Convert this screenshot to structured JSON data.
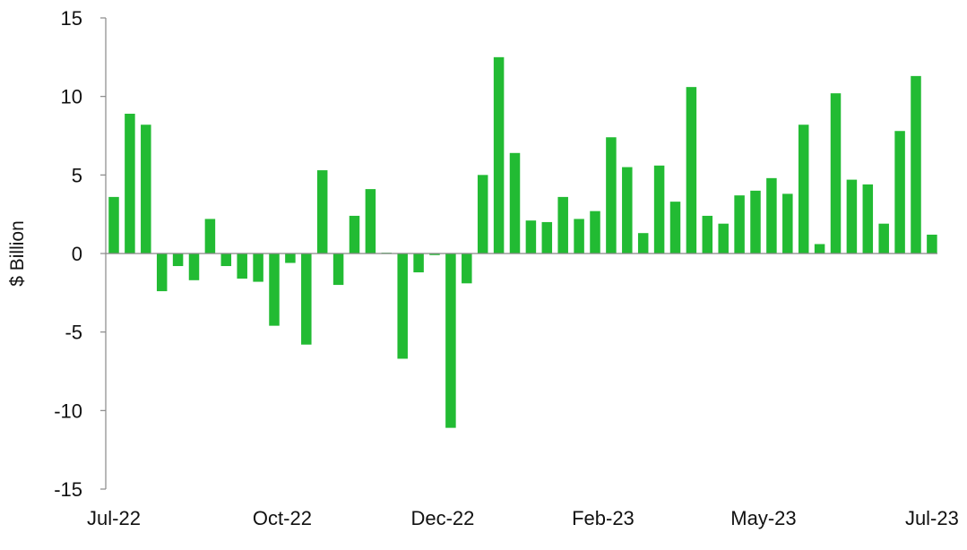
{
  "chart_data": {
    "type": "bar",
    "title": "",
    "xlabel": "",
    "ylabel": "$ Billion",
    "ylim": [
      -15,
      15
    ],
    "yticks": [
      15,
      10,
      5,
      0,
      -5,
      -10,
      -15
    ],
    "ytick_labels": [
      "15",
      "10",
      "5",
      "0",
      "-5",
      "-10",
      "-15"
    ],
    "x_tick_labels": [
      "Jul-22",
      "Oct-22",
      "Dec-22",
      "Feb-23",
      "May-23",
      "Jul-23"
    ],
    "x_tick_positions": [
      0,
      10.5,
      20.5,
      30.5,
      40.5,
      51
    ],
    "grid": false,
    "legend": "none",
    "bar_color": "#22bb33",
    "values": [
      3.6,
      8.9,
      8.2,
      -2.4,
      -0.8,
      -1.7,
      2.2,
      -0.8,
      -1.6,
      -1.8,
      -4.6,
      -0.6,
      -5.8,
      5.3,
      -2.0,
      2.4,
      4.1,
      0.05,
      -6.7,
      -1.2,
      -0.1,
      -11.1,
      -1.9,
      5.0,
      12.5,
      6.4,
      2.1,
      2.0,
      3.6,
      2.2,
      2.7,
      7.4,
      5.5,
      1.3,
      5.6,
      3.3,
      10.6,
      2.4,
      1.9,
      3.7,
      4.0,
      4.8,
      3.8,
      8.2,
      0.6,
      10.2,
      4.7,
      4.4,
      1.9,
      7.8,
      11.3,
      1.2
    ]
  }
}
